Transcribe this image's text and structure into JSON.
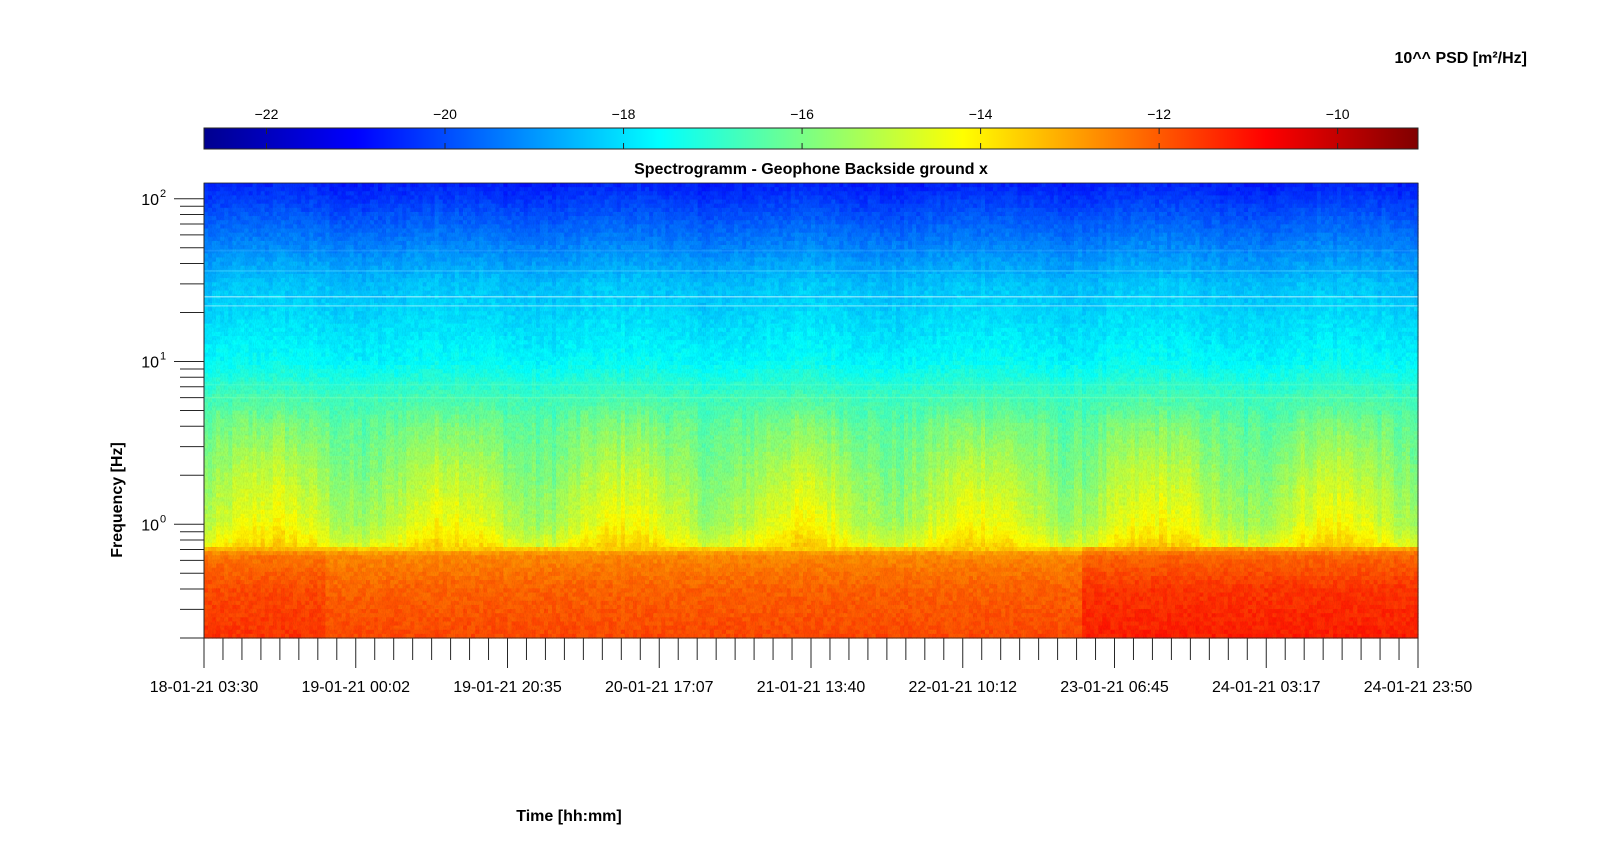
{
  "chart_data": {
    "type": "heatmap",
    "title": "Spectrogramm - Geophone Backside ground x",
    "xlabel": "Time [hh:mm]",
    "ylabel": "Frequency [Hz]",
    "x_tick_labels": [
      "18-01-21 03:30",
      "19-01-21 00:02",
      "19-01-21 20:35",
      "20-01-21 17:07",
      "21-01-21 13:40",
      "22-01-21 10:12",
      "23-01-21 06:45",
      "24-01-21 03:17",
      "24-01-21 23:50"
    ],
    "x_range": [
      "18-01-21 03:30",
      "24-01-21 23:50"
    ],
    "y_scale": "log",
    "y_ticks": [
      {
        "value": 1,
        "base": "10",
        "exp": "0"
      },
      {
        "value": 10,
        "base": "10",
        "exp": "1"
      },
      {
        "value": 100,
        "base": "10",
        "exp": "2"
      }
    ],
    "ylim": [
      0.2,
      125
    ],
    "colorbar": {
      "label": "10^^ PSD [m²/Hz]",
      "colormap": "jet",
      "ticks": [
        -22,
        -20,
        -18,
        -16,
        -14,
        -12,
        -10
      ],
      "range": [
        -22.7,
        -9.1
      ],
      "placement": "top"
    },
    "approx_log10_psd_profile": {
      "frequency_hz": [
        0.2,
        0.4,
        0.65,
        0.75,
        1.0,
        2.0,
        4.0,
        6.0,
        10.0,
        30.0,
        70.0,
        125.0
      ],
      "day_max": [
        -11.2,
        -11.5,
        -12.2,
        -13.6,
        -14.2,
        -14.9,
        -15.8,
        -16.6,
        -17.5,
        -18.3,
        -19.6,
        -20.5
      ],
      "night_min": [
        -12.2,
        -12.6,
        -13.0,
        -14.8,
        -15.5,
        -16.0,
        -16.4,
        -16.8,
        -17.7,
        -18.5,
        -19.8,
        -20.7
      ]
    }
  }
}
